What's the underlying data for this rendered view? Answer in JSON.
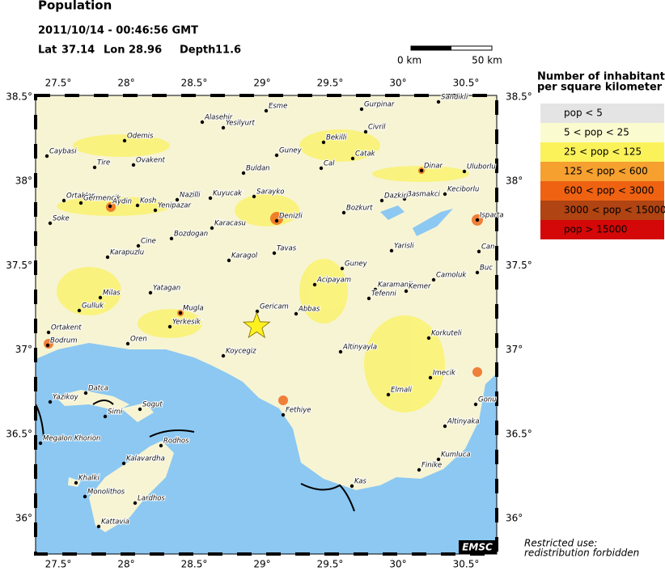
{
  "header": {
    "title": "Population",
    "datetime": "2011/10/14 - 00:46:56 GMT",
    "lat_label": "Lat",
    "lat": 37.14,
    "lon_label": "Lon",
    "lon": 28.96,
    "depth_label": "Depth",
    "depth": 11.6
  },
  "scale_bar": {
    "start": "0 km",
    "end": "50 km"
  },
  "map": {
    "lon_ticks": [
      "27.5°",
      "28°",
      "28.5°",
      "29°",
      "29.5°",
      "30°",
      "30.5°"
    ],
    "lat_ticks": [
      "38.5°",
      "38°",
      "37.5°",
      "37°",
      "36.5°",
      "36°"
    ],
    "places": [
      "Sandikli",
      "Esme",
      "Gurpinar",
      "Alasehir",
      "Yesilyurt",
      "Civril",
      "Bekilli",
      "Odemis",
      "Guney",
      "Catak",
      "Cal",
      "Caybasi",
      "Tire",
      "Ovakent",
      "Buldan",
      "Dinar",
      "Uluborlu",
      "Ortaklar",
      "Germencik",
      "Aydin",
      "Kosh",
      "Nazilli",
      "Kuyucak",
      "Sarayko",
      "Basmakci",
      "Keciborlu",
      "Dazkiri",
      "Yenipazar",
      "Denizli",
      "Bozkurt",
      "Isparta",
      "Soke",
      "Karacasu",
      "Bozdogan",
      "Cine",
      "Tavas",
      "Yarisli",
      "Karapuzlu",
      "Karagol",
      "Guney",
      "Can",
      "Buc",
      "Camoluk",
      "Acipayam",
      "Karamanli",
      "Kemer",
      "Tefenni",
      "Milas",
      "Yatagan",
      "Gericam",
      "Abbas",
      "Gulluk",
      "Mugla",
      "Yerkesik",
      "Ortakent",
      "Bodrum",
      "Oren",
      "Korkuteli",
      "Koycegiz",
      "Altinyayla",
      "Imecik",
      "Datca",
      "Elmali",
      "Yazikoy",
      "Gonu",
      "Simi",
      "Sogut",
      "Fethiye",
      "Altinyaka",
      "Megalon Khorion",
      "Rodhos",
      "Kalavardha",
      "Kumluca",
      "Finike",
      "Khalki",
      "Kas",
      "Monolithos",
      "Lardhos",
      "Kattavia"
    ]
  },
  "legend": {
    "title": [
      "Number of inhabitants",
      "per square kilometer"
    ],
    "items": [
      {
        "label": "pop < 5",
        "color": "#e4e4e4"
      },
      {
        "label": "5 < pop < 25",
        "color": "#fbfbd0"
      },
      {
        "label": "25 < pop < 125",
        "color": "#fbf25a"
      },
      {
        "label": "125 < pop < 600",
        "color": "#f6a030"
      },
      {
        "label": "600 < pop < 3000",
        "color": "#ee6212"
      },
      {
        "label": "3000 < pop < 15000",
        "color": "#b04412"
      },
      {
        "label": "pop > 15000",
        "color": "#d40808"
      }
    ]
  },
  "footer": {
    "restriction": [
      "Restricted use:",
      "redistribution forbidden"
    ],
    "logo": "EMSC"
  }
}
